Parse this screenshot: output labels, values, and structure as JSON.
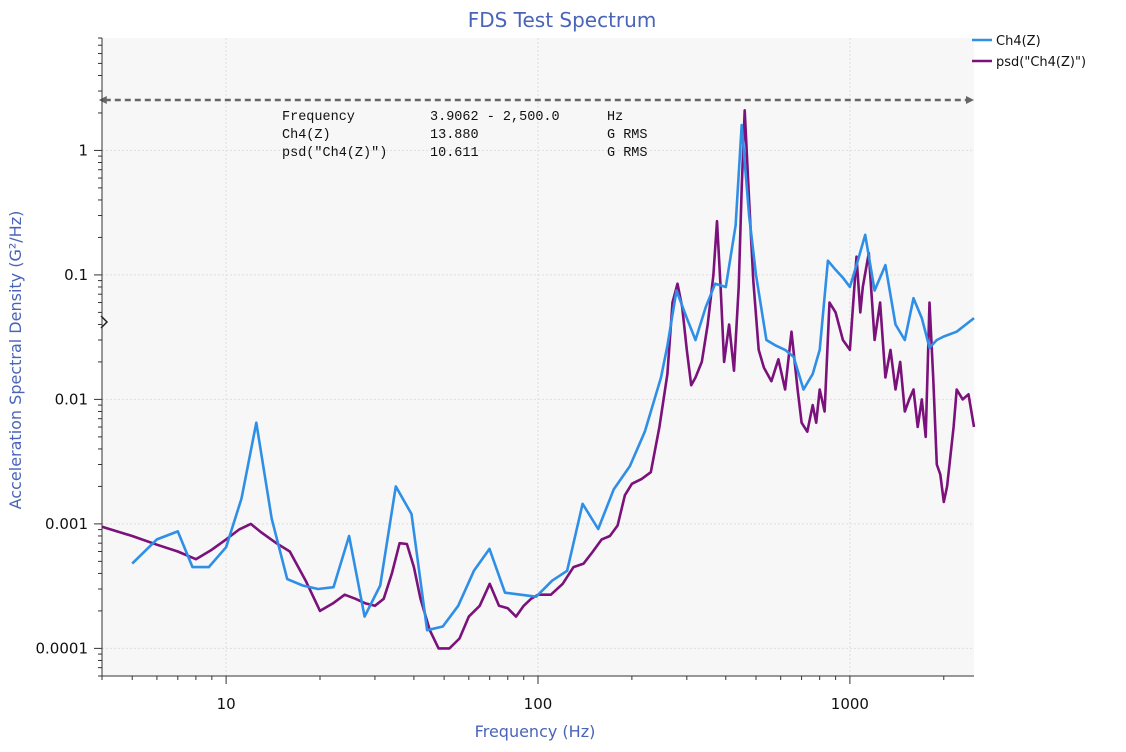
{
  "chart_data": {
    "type": "line",
    "title": "FDS Test Spectrum",
    "xlabel": "Frequency (Hz)",
    "ylabel": "Acceleration Spectral Density (G²/Hz)",
    "xscale": "log",
    "yscale": "log",
    "xlim": [
      4,
      2500
    ],
    "ylim": [
      6e-05,
      8
    ],
    "x_ticks": [
      {
        "value": 10,
        "label": "10"
      },
      {
        "value": 100,
        "label": "100"
      },
      {
        "value": 1000,
        "label": "1000"
      }
    ],
    "y_ticks": [
      {
        "value": 0.0001,
        "label": "0.0001"
      },
      {
        "value": 0.001,
        "label": "0.001"
      },
      {
        "value": 0.01,
        "label": "0.01"
      },
      {
        "value": 0.1,
        "label": "0.1"
      },
      {
        "value": 1,
        "label": "1"
      }
    ],
    "grid": true,
    "legend_position": "top-right",
    "cursor_band": [
      3.9062,
      2500
    ],
    "annotation": {
      "rows": [
        {
          "label": "Frequency",
          "value": "3.9062 - 2,500.0",
          "unit": "Hz"
        },
        {
          "label": "Ch4(Z)",
          "value": "13.880",
          "unit": "G RMS"
        },
        {
          "label": "psd(\"Ch4(Z)\")",
          "value": "10.611",
          "unit": "G RMS"
        }
      ]
    },
    "series": [
      {
        "name": "Ch4(Z)",
        "color": "#2f8fe6",
        "x": [
          5,
          6,
          7,
          7.8,
          8.8,
          10,
          11.2,
          12.5,
          14,
          15.7,
          17.6,
          19.7,
          22.1,
          24.8,
          27.8,
          31.2,
          35,
          39.3,
          44.1,
          49.5,
          55.5,
          62.3,
          69.9,
          78.4,
          88,
          98.7,
          111,
          124,
          139,
          156,
          175,
          197,
          220,
          248,
          260,
          278,
          300,
          320,
          345,
          370,
          400,
          430,
          450,
          475,
          500,
          540,
          580,
          620,
          660,
          710,
          760,
          800,
          850,
          900,
          950,
          1000,
          1060,
          1120,
          1200,
          1300,
          1400,
          1500,
          1600,
          1700,
          1800,
          1900,
          2000,
          2200,
          2500
        ],
        "y": [
          0.00048,
          0.00075,
          0.00087,
          0.00045,
          0.00045,
          0.00065,
          0.0016,
          0.0065,
          0.0011,
          0.00036,
          0.00032,
          0.0003,
          0.00031,
          0.0008,
          0.00018,
          0.00032,
          0.002,
          0.0012,
          0.00014,
          0.00015,
          0.00022,
          0.00042,
          0.00063,
          0.00028,
          0.00027,
          0.00026,
          0.00035,
          0.00042,
          0.00145,
          0.00091,
          0.0019,
          0.0029,
          0.0055,
          0.015,
          0.027,
          0.075,
          0.045,
          0.03,
          0.055,
          0.085,
          0.08,
          0.25,
          1.6,
          0.3,
          0.1,
          0.03,
          0.027,
          0.025,
          0.022,
          0.012,
          0.016,
          0.025,
          0.13,
          0.11,
          0.095,
          0.08,
          0.13,
          0.21,
          0.075,
          0.12,
          0.04,
          0.03,
          0.065,
          0.045,
          0.026,
          0.03,
          0.032,
          0.035,
          0.045
        ]
      },
      {
        "name": "psd(\"Ch4(Z)\")",
        "color": "#7b117b",
        "x": [
          4,
          5,
          6,
          7,
          8,
          9,
          10,
          11,
          12,
          13,
          14.5,
          16,
          18,
          20,
          22,
          24,
          26,
          28,
          30,
          32,
          34,
          36,
          38,
          40,
          42,
          45,
          48,
          52,
          56,
          60,
          65,
          70,
          75,
          80,
          85,
          90,
          95,
          100,
          110,
          120,
          130,
          140,
          150,
          160,
          170,
          180,
          190,
          200,
          215,
          230,
          245,
          260,
          270,
          280,
          290,
          300,
          310,
          320,
          335,
          350,
          365,
          375,
          385,
          395,
          410,
          425,
          440,
          450,
          460,
          475,
          490,
          510,
          530,
          560,
          590,
          620,
          650,
          680,
          700,
          730,
          760,
          780,
          800,
          830,
          860,
          900,
          950,
          1000,
          1050,
          1080,
          1100,
          1150,
          1200,
          1250,
          1300,
          1350,
          1400,
          1450,
          1500,
          1550,
          1600,
          1650,
          1700,
          1750,
          1800,
          1850,
          1900,
          1950,
          2000,
          2050,
          2100,
          2150,
          2200,
          2300,
          2400,
          2500
        ],
        "y": [
          0.00095,
          0.0008,
          0.00068,
          0.0006,
          0.00052,
          0.00062,
          0.00075,
          0.0009,
          0.001,
          0.00085,
          0.0007,
          0.0006,
          0.00035,
          0.0002,
          0.00023,
          0.00027,
          0.00025,
          0.00023,
          0.00022,
          0.00025,
          0.0004,
          0.0007,
          0.00069,
          0.00045,
          0.00025,
          0.00014,
          0.0001,
          0.0001,
          0.00012,
          0.00018,
          0.00022,
          0.00033,
          0.00022,
          0.00021,
          0.00018,
          0.00022,
          0.00025,
          0.00027,
          0.00027,
          0.00033,
          0.00045,
          0.00048,
          0.0006,
          0.00075,
          0.0008,
          0.00097,
          0.0017,
          0.0021,
          0.0023,
          0.0026,
          0.006,
          0.016,
          0.06,
          0.085,
          0.055,
          0.025,
          0.013,
          0.015,
          0.02,
          0.04,
          0.1,
          0.27,
          0.08,
          0.02,
          0.04,
          0.017,
          0.08,
          0.5,
          2.1,
          0.4,
          0.09,
          0.025,
          0.018,
          0.014,
          0.021,
          0.012,
          0.035,
          0.012,
          0.0065,
          0.0055,
          0.009,
          0.0065,
          0.012,
          0.008,
          0.06,
          0.05,
          0.03,
          0.025,
          0.14,
          0.05,
          0.08,
          0.15,
          0.03,
          0.06,
          0.015,
          0.025,
          0.012,
          0.02,
          0.008,
          0.01,
          0.012,
          0.006,
          0.01,
          0.005,
          0.06,
          0.015,
          0.003,
          0.0025,
          0.0015,
          0.002,
          0.0035,
          0.006,
          0.012,
          0.01,
          0.011,
          0.006
        ]
      }
    ]
  }
}
